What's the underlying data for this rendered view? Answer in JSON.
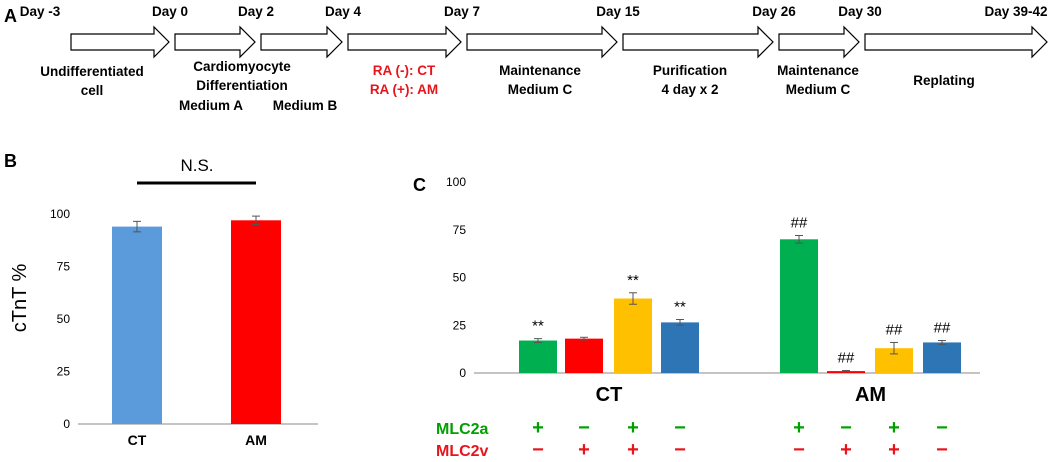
{
  "panels": {
    "a": "A",
    "b": "B",
    "c": "C"
  },
  "timeline": {
    "days": [
      "Day -3",
      "Day 0",
      "Day 2",
      "Day 4",
      "Day 7",
      "Day 15",
      "Day 26",
      "Day 30",
      "Day 39-42"
    ],
    "stages": [
      {
        "lines": [
          "Undifferentiated",
          "cell"
        ],
        "color": "#000000"
      },
      {
        "lines": [
          "Cardiomyocyte",
          "Differentiation"
        ],
        "color": "#000000"
      },
      {
        "lines": [
          "Medium A"
        ],
        "color": "#000000"
      },
      {
        "lines": [
          "Medium B"
        ],
        "color": "#000000"
      },
      {
        "lines": [
          "RA (-): CT",
          "RA (+): AM"
        ],
        "color": "#e8141b"
      },
      {
        "lines": [
          "Maintenance",
          "Medium C"
        ],
        "color": "#000000"
      },
      {
        "lines": [
          "Purification",
          "4 day x 2"
        ],
        "color": "#000000"
      },
      {
        "lines": [
          "Maintenance",
          "Medium C"
        ],
        "color": "#000000"
      },
      {
        "lines": [
          "Replating"
        ],
        "color": "#000000"
      }
    ]
  },
  "chart_data": [
    {
      "panel": "B",
      "type": "bar",
      "ylabel": "cTnT %",
      "ylim": [
        0,
        100
      ],
      "yticks": [
        0,
        25,
        50,
        75,
        100
      ],
      "categories": [
        "CT",
        "AM"
      ],
      "values": [
        94,
        97
      ],
      "errors": [
        2.5,
        2
      ],
      "colors": [
        "#5b9bdb",
        "#ff0000"
      ],
      "annotation": "N.S."
    },
    {
      "panel": "C",
      "type": "bar",
      "ylim": [
        0,
        100
      ],
      "yticks": [
        0,
        25,
        50,
        75,
        100
      ],
      "groups": [
        "CT",
        "AM"
      ],
      "series": [
        {
          "name": "MLC2a+ MLC2v-",
          "color": "#00b050",
          "values": [
            17,
            70
          ],
          "errors": [
            1,
            2
          ]
        },
        {
          "name": "MLC2a- MLC2v+",
          "color": "#ff0000",
          "values": [
            18,
            1
          ],
          "errors": [
            0.7,
            0.3
          ]
        },
        {
          "name": "MLC2a+ MLC2v+",
          "color": "#ffc000",
          "values": [
            39,
            13
          ],
          "errors": [
            3,
            3
          ]
        },
        {
          "name": "MLC2a- MLC2v-",
          "color": "#2e75b6",
          "values": [
            26.5,
            16
          ],
          "errors": [
            1.5,
            1
          ]
        }
      ],
      "significance": [
        [
          "**",
          "##"
        ],
        [
          "",
          "##"
        ],
        [
          "**",
          "##"
        ],
        [
          "**",
          "##"
        ]
      ],
      "markers": {
        "MLC2a": {
          "label": "MLC2a",
          "color": "#00a000",
          "signs": [
            "+",
            "−",
            "+",
            "−",
            "+",
            "−",
            "+",
            "−"
          ]
        },
        "MLC2v": {
          "label": "MLC2v",
          "color": "#e8141b",
          "signs": [
            "−",
            "+",
            "+",
            "−",
            "−",
            "+",
            "+",
            "−"
          ]
        }
      }
    }
  ]
}
